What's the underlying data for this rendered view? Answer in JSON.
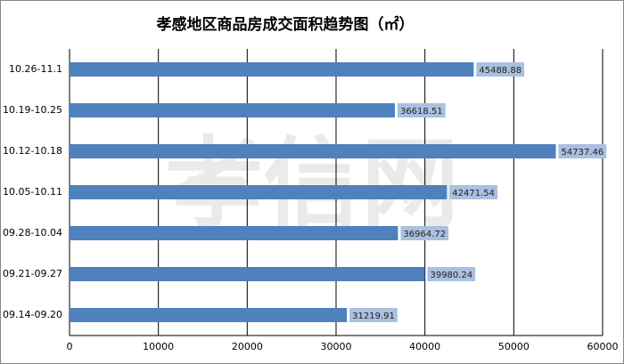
{
  "chart_data": {
    "type": "barh",
    "title": "孝感地区商品房成交面积趋势图（㎡）",
    "watermark": "孝信网",
    "categories": [
      "10.26-11.1",
      "10.19-10.25",
      "10.12-10.18",
      "10.05-10.11",
      "09.28-10.04",
      "09.21-09.27",
      "09.14-09.20"
    ],
    "values": [
      45488.88,
      36618.51,
      54737.46,
      42471.54,
      36964.72,
      39980.24,
      31219.91
    ],
    "color": "#4f81bd",
    "xlim": [
      0,
      60000
    ],
    "xticks": [
      0,
      10000,
      20000,
      30000,
      40000,
      50000,
      60000
    ],
    "grid": true
  }
}
